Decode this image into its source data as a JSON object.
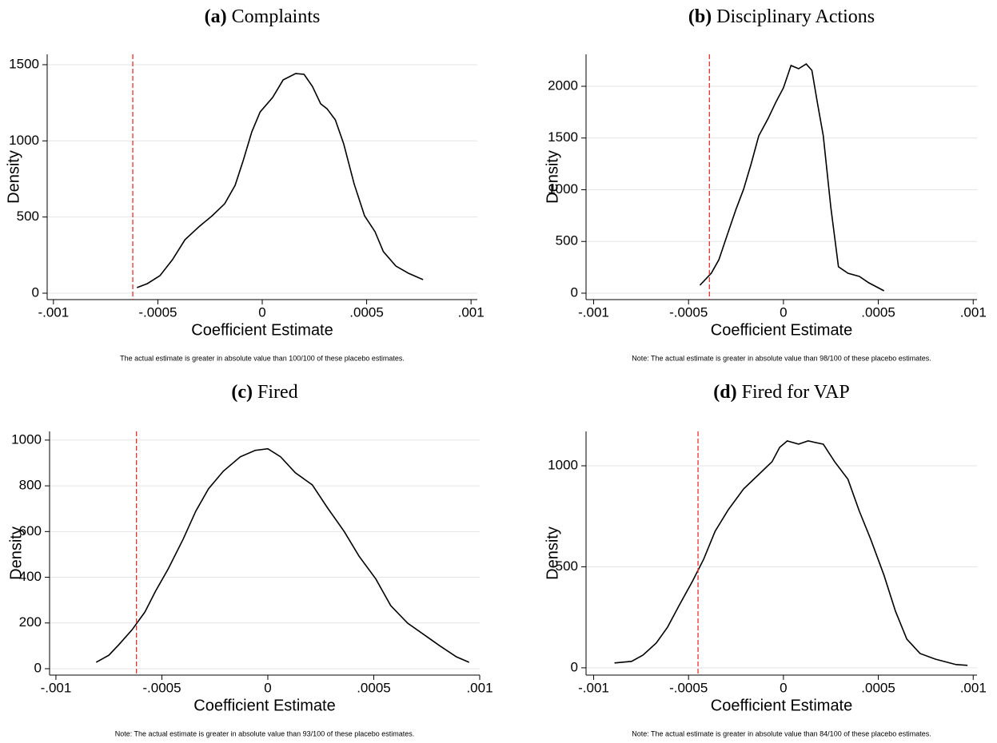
{
  "chart_data": [
    {
      "type": "line",
      "label": "(a)",
      "title": "Complaints",
      "xlabel": "Coefficient Estimate",
      "ylabel": "Density",
      "note": "The actual estimate is greater in absolute value than 100/100 of these placebo estimates.",
      "xlim": [
        -0.00103,
        0.00103
      ],
      "ylim": [
        -42,
        1568
      ],
      "xticks": [
        {
          "value": -0.001,
          "label": "-.001"
        },
        {
          "value": -0.0005,
          "label": "-.0005"
        },
        0,
        {
          "value": 0.0005,
          "label": ".0005"
        },
        {
          "value": 0.001,
          "label": ".001"
        }
      ],
      "yticks": [
        0,
        500,
        1000,
        1500
      ],
      "grid": true,
      "color": "#000000",
      "x": [
        -0.0006,
        -0.00055,
        -0.00049,
        -0.00043,
        -0.00037,
        -0.0003,
        -0.00024,
        -0.00018,
        -0.00013,
        -9e-05,
        -5e-05,
        -1e-05,
        5e-05,
        0.0001,
        0.00016,
        0.0002,
        0.00024,
        0.00028,
        0.00031,
        0.00035,
        0.00039,
        0.00044,
        0.00049,
        0.00054,
        0.00058,
        0.00064,
        0.0007,
        0.00077
      ],
      "values": [
        37,
        63,
        115,
        220,
        351,
        440,
        508,
        587,
        708,
        876,
        1059,
        1190,
        1285,
        1400,
        1442,
        1437,
        1358,
        1243,
        1211,
        1138,
        981,
        718,
        508,
        404,
        273,
        178,
        131,
        89
      ],
      "vline": {
        "x": -0.00062,
        "color": "#e8322e"
      }
    },
    {
      "type": "line",
      "label": "(b)",
      "title": "Disciplinary Actions",
      "xlabel": "Coefficient Estimate",
      "ylabel": "Density",
      "note": "Note: The actual estimate is greater in absolute value than 98/100 of these placebo estimates.",
      "xlim": [
        -0.00104,
        0.00102
      ],
      "ylim": [
        -62,
        2309
      ],
      "xticks": [
        {
          "value": -0.001,
          "label": "-.001"
        },
        {
          "value": -0.0005,
          "label": "-.0005"
        },
        0,
        {
          "value": 0.0005,
          "label": ".0005"
        },
        {
          "value": 0.001,
          "label": ".001"
        }
      ],
      "yticks": [
        0,
        500,
        1000,
        1500,
        2000
      ],
      "grid": true,
      "color": "#000000",
      "x": [
        -0.00044,
        -0.00038,
        -0.00034,
        -0.00029,
        -0.00025,
        -0.00021,
        -0.00017,
        -0.00013,
        -8e-05,
        -4e-05,
        0,
        4e-05,
        8e-05,
        0.00012,
        0.00015,
        0.00018,
        0.00021,
        0.00025,
        0.00029,
        0.00034,
        0.0004,
        0.00045,
        0.00053
      ],
      "values": [
        77,
        193,
        324,
        595,
        811,
        1004,
        1251,
        1521,
        1691,
        1846,
        1985,
        2201,
        2170,
        2216,
        2154,
        1830,
        1521,
        826,
        255,
        193,
        162,
        100,
        23
      ],
      "vline": {
        "x": -0.00039,
        "color": "#e8322e"
      }
    },
    {
      "type": "line",
      "label": "(c)",
      "title": "Fired",
      "xlabel": "Coefficient Estimate",
      "ylabel": "Density",
      "note": "Note: The actual estimate is greater in absolute value than 93/100 of these placebo estimates.",
      "xlim": [
        -0.00103,
        0.001
      ],
      "ylim": [
        -28,
        1038
      ],
      "xticks": [
        {
          "value": -0.001,
          "label": "-.001"
        },
        {
          "value": -0.0005,
          "label": "-.0005"
        },
        0,
        {
          "value": 0.0005,
          "label": ".0005"
        },
        {
          "value": 0.001,
          "label": ".001"
        }
      ],
      "yticks": [
        0,
        200,
        400,
        600,
        800,
        1000
      ],
      "grid": true,
      "color": "#000000",
      "x": [
        -0.00081,
        -0.00075,
        -0.0007,
        -0.00064,
        -0.00058,
        -0.00053,
        -0.00047,
        -0.0004,
        -0.00034,
        -0.00028,
        -0.00021,
        -0.00013,
        -6e-05,
        0,
        6e-05,
        0.00013,
        0.00021,
        0.00028,
        0.00036,
        0.00043,
        0.00051,
        0.00058,
        0.00066,
        0.00074,
        0.00081,
        0.00089,
        0.00095
      ],
      "values": [
        28,
        59,
        108,
        171,
        248,
        339,
        437,
        566,
        689,
        787,
        864,
        927,
        955,
        962,
        927,
        857,
        804,
        706,
        601,
        493,
        392,
        276,
        199,
        147,
        101,
        52,
        28
      ],
      "vline": {
        "x": -0.00062,
        "color": "#e8322e"
      }
    },
    {
      "type": "line",
      "label": "(d)",
      "title": "Fired for VAP",
      "xlabel": "Coefficient Estimate",
      "ylabel": "Density",
      "note": "Note: The actual estimate is greater in absolute value than 84/100 of these placebo estimates.",
      "xlim": [
        -0.00104,
        0.00102
      ],
      "ylim": [
        -36,
        1170
      ],
      "xticks": [
        {
          "value": -0.001,
          "label": "-.001"
        },
        {
          "value": -0.0005,
          "label": "-.0005"
        },
        0,
        {
          "value": 0.0005,
          "label": ".0005"
        },
        {
          "value": 0.001,
          "label": ".001"
        }
      ],
      "yticks": [
        0,
        500,
        1000
      ],
      "grid": true,
      "color": "#000000",
      "x": [
        -0.00089,
        -0.0008,
        -0.00074,
        -0.00067,
        -0.00061,
        -0.00055,
        -0.00048,
        -0.00042,
        -0.00036,
        -0.00029,
        -0.00021,
        -0.00013,
        -6e-05,
        -2e-05,
        2e-05,
        8e-05,
        0.00013,
        0.00021,
        0.00027,
        0.00034,
        0.0004,
        0.00046,
        0.00053,
        0.00059,
        0.00065,
        0.00072,
        0.0008,
        0.00091,
        0.00097
      ],
      "values": [
        24,
        32,
        63,
        123,
        202,
        308,
        427,
        538,
        676,
        783,
        885,
        957,
        1020,
        1091,
        1123,
        1107,
        1123,
        1107,
        1020,
        933,
        775,
        636,
        458,
        281,
        142,
        71,
        43,
        16,
        12
      ],
      "vline": {
        "x": -0.00045,
        "color": "#e8322e"
      }
    }
  ]
}
